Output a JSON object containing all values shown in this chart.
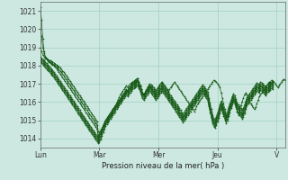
{
  "background_color": "#cce8e0",
  "grid_color": "#99ccbb",
  "line_color": "#1a5c1a",
  "xlabel": "Pression niveau de la mer( hPa )",
  "ylim": [
    1013.5,
    1021.5
  ],
  "yticks": [
    1014,
    1015,
    1016,
    1017,
    1018,
    1019,
    1020,
    1021
  ],
  "day_labels": [
    "Lun",
    "Mar",
    "Mer",
    "Jeu",
    "V"
  ],
  "day_positions": [
    0,
    48,
    96,
    144,
    192
  ],
  "lines": [
    [
      1021.2,
      1020.5,
      1019.5,
      1018.8,
      1018.5,
      1018.4,
      1018.35,
      1018.3,
      1018.28,
      1018.25,
      1018.2,
      1018.15,
      1018.1,
      1018.05,
      1018.0,
      1017.95,
      1017.88,
      1017.8,
      1017.72,
      1017.65,
      1017.55,
      1017.45,
      1017.35,
      1017.25,
      1017.15,
      1017.05,
      1016.95,
      1016.85,
      1016.75,
      1016.65,
      1016.55,
      1016.45,
      1016.35,
      1016.25,
      1016.15,
      1016.05,
      1015.95,
      1015.85,
      1015.75,
      1015.65,
      1015.55,
      1015.45,
      1015.35,
      1015.25,
      1015.15,
      1015.05,
      1014.95,
      1014.4,
      1014.35,
      1014.45,
      1014.55,
      1014.65,
      1014.75,
      1014.85,
      1014.95,
      1015.05,
      1015.15,
      1015.25,
      1015.35,
      1015.45,
      1015.55,
      1015.65,
      1015.75,
      1015.85,
      1015.95,
      1016.05,
      1016.15,
      1016.25,
      1016.35,
      1016.45,
      1016.55,
      1016.65,
      1016.75,
      1016.85,
      1016.95,
      1017.05,
      1017.1,
      1017.15,
      1017.2,
      1017.3,
      1017.1,
      1016.9,
      1016.7,
      1016.5,
      1016.4,
      1016.5,
      1016.65,
      1016.8,
      1016.9,
      1017.0,
      1016.95,
      1016.9,
      1016.8,
      1016.7,
      1016.65,
      1016.75,
      1016.85,
      1016.95,
      1017.05,
      1017.1,
      1017.0,
      1016.9,
      1016.8,
      1016.7,
      1016.6,
      1016.7,
      1016.8,
      1016.9,
      1017.0,
      1017.1,
      1017.0,
      1016.9,
      1016.8,
      1016.7,
      1016.6,
      1016.5,
      1016.4,
      1016.3,
      1016.2,
      1016.1,
      1016.0,
      1015.9,
      1015.8,
      1015.7,
      1015.6,
      1015.5,
      1015.6,
      1015.75,
      1015.9,
      1016.0,
      1016.1,
      1016.2,
      1016.3,
      1016.4,
      1016.5,
      1016.6,
      1016.7,
      1016.8,
      1016.9,
      1017.0,
      1017.1,
      1017.2,
      1017.15,
      1017.1,
      1017.0,
      1016.9,
      1016.8,
      1016.5,
      1016.2,
      1015.9,
      1015.6,
      1015.3,
      1015.2,
      1015.35,
      1015.55,
      1015.75,
      1016.0,
      1016.1,
      1016.0,
      1015.8,
      1015.5,
      1015.3,
      1015.5,
      1015.8,
      1016.0,
      1016.2,
      1016.4,
      1016.5,
      1016.4,
      1016.2,
      1016.0,
      1015.9,
      1015.8,
      1015.7,
      1015.6,
      1015.7,
      1015.9,
      1016.1,
      1016.3,
      1016.4,
      1016.5,
      1016.6,
      1016.7,
      1016.8,
      1016.9,
      1017.0,
      1017.1,
      1017.05,
      1017.0,
      1017.15,
      1017.1,
      1017.0,
      1016.9,
      1016.8,
      1016.9,
      1017.0,
      1017.1,
      1017.2,
      1017.25,
      1017.2
    ],
    [
      1020.0,
      1019.6,
      1019.0,
      1018.7,
      1018.5,
      1018.4,
      1018.3,
      1018.25,
      1018.2,
      1018.15,
      1018.1,
      1018.05,
      1018.0,
      1017.95,
      1017.88,
      1017.8,
      1017.72,
      1017.65,
      1017.55,
      1017.45,
      1017.35,
      1017.25,
      1017.15,
      1017.05,
      1016.95,
      1016.85,
      1016.75,
      1016.65,
      1016.55,
      1016.45,
      1016.35,
      1016.25,
      1016.15,
      1016.05,
      1015.95,
      1015.85,
      1015.75,
      1015.65,
      1015.55,
      1015.45,
      1015.35,
      1015.25,
      1015.15,
      1015.05,
      1014.95,
      1014.85,
      1014.75,
      1014.2,
      1014.25,
      1014.4,
      1014.55,
      1014.7,
      1014.85,
      1015.0,
      1015.1,
      1015.2,
      1015.3,
      1015.4,
      1015.5,
      1015.6,
      1015.7,
      1015.8,
      1015.95,
      1016.1,
      1016.25,
      1016.4,
      1016.5,
      1016.6,
      1016.7,
      1016.8,
      1016.9,
      1016.8,
      1016.9,
      1017.0,
      1017.05,
      1017.1,
      1017.15,
      1017.2,
      1017.25,
      1017.3,
      1017.1,
      1016.9,
      1016.7,
      1016.5,
      1016.4,
      1016.5,
      1016.6,
      1016.7,
      1016.8,
      1016.9,
      1016.85,
      1016.8,
      1016.7,
      1016.6,
      1016.55,
      1016.65,
      1016.75,
      1016.85,
      1016.95,
      1017.05,
      1016.95,
      1016.85,
      1016.75,
      1016.65,
      1016.55,
      1016.45,
      1016.35,
      1016.25,
      1016.15,
      1016.05,
      1015.95,
      1015.85,
      1015.75,
      1015.65,
      1015.55,
      1015.45,
      1015.35,
      1015.45,
      1015.55,
      1015.65,
      1015.75,
      1015.85,
      1015.95,
      1016.05,
      1016.15,
      1016.25,
      1016.35,
      1016.45,
      1016.55,
      1016.65,
      1016.75,
      1016.85,
      1016.95,
      1016.85,
      1016.75,
      1016.65,
      1016.55,
      1016.2,
      1015.9,
      1015.6,
      1015.3,
      1015.1,
      1015.05,
      1015.2,
      1015.4,
      1015.6,
      1015.85,
      1016.05,
      1015.9,
      1015.7,
      1015.5,
      1015.3,
      1015.45,
      1015.7,
      1015.9,
      1016.1,
      1016.3,
      1016.45,
      1016.35,
      1016.15,
      1015.95,
      1015.85,
      1015.75,
      1015.65,
      1015.55,
      1015.65,
      1015.85,
      1016.05,
      1016.25,
      1016.35,
      1016.45,
      1016.55,
      1016.65,
      1016.75,
      1016.85,
      1016.95,
      1017.05,
      1017.0,
      1016.95,
      1017.1,
      1017.05,
      1017.0,
      1016.9,
      1016.8,
      1016.9,
      1017.0,
      1017.05,
      1017.1,
      1017.2,
      1017.15
    ],
    [
      1019.0,
      1018.8,
      1018.6,
      1018.5,
      1018.4,
      1018.35,
      1018.28,
      1018.2,
      1018.15,
      1018.1,
      1018.05,
      1018.0,
      1017.92,
      1017.85,
      1017.75,
      1017.65,
      1017.55,
      1017.45,
      1017.35,
      1017.25,
      1017.15,
      1017.05,
      1016.95,
      1016.85,
      1016.75,
      1016.65,
      1016.55,
      1016.45,
      1016.35,
      1016.25,
      1016.15,
      1016.05,
      1015.95,
      1015.85,
      1015.75,
      1015.65,
      1015.55,
      1015.45,
      1015.35,
      1015.25,
      1015.15,
      1015.05,
      1014.95,
      1014.85,
      1014.75,
      1014.65,
      1014.55,
      1014.1,
      1014.15,
      1014.3,
      1014.5,
      1014.7,
      1014.85,
      1015.0,
      1015.1,
      1015.2,
      1015.3,
      1015.4,
      1015.5,
      1015.6,
      1015.7,
      1015.8,
      1015.9,
      1016.0,
      1016.1,
      1016.2,
      1016.3,
      1016.4,
      1016.5,
      1016.6,
      1016.7,
      1016.6,
      1016.7,
      1016.8,
      1016.9,
      1017.0,
      1017.05,
      1017.1,
      1017.15,
      1017.2,
      1017.05,
      1016.9,
      1016.7,
      1016.5,
      1016.4,
      1016.5,
      1016.6,
      1016.7,
      1016.8,
      1016.9,
      1016.8,
      1016.7,
      1016.6,
      1016.5,
      1016.45,
      1016.55,
      1016.65,
      1016.75,
      1016.85,
      1016.95,
      1016.85,
      1016.75,
      1016.65,
      1016.55,
      1016.45,
      1016.35,
      1016.25,
      1016.15,
      1016.05,
      1015.95,
      1015.85,
      1015.75,
      1015.65,
      1015.55,
      1015.45,
      1015.35,
      1015.25,
      1015.35,
      1015.45,
      1015.55,
      1015.65,
      1015.75,
      1015.85,
      1015.95,
      1016.05,
      1016.15,
      1016.25,
      1016.35,
      1016.45,
      1016.55,
      1016.65,
      1016.75,
      1016.85,
      1016.75,
      1016.65,
      1016.55,
      1016.45,
      1016.1,
      1015.8,
      1015.5,
      1015.2,
      1015.0,
      1014.95,
      1015.1,
      1015.3,
      1015.5,
      1015.75,
      1015.95,
      1015.8,
      1015.6,
      1015.4,
      1015.2,
      1015.35,
      1015.6,
      1015.8,
      1016.0,
      1016.2,
      1016.35,
      1016.25,
      1016.05,
      1015.85,
      1015.75,
      1015.65,
      1015.55,
      1015.45,
      1015.55,
      1015.75,
      1015.95,
      1016.15,
      1016.25,
      1016.35,
      1016.45,
      1016.55,
      1016.65,
      1016.75,
      1016.85,
      1016.95,
      1016.9,
      1016.85,
      1017.0,
      1016.95,
      1016.9,
      1016.8,
      1016.7,
      1016.8,
      1016.9,
      1016.95,
      1017.0,
      1017.1,
      1017.05
    ],
    [
      1018.5,
      1018.4,
      1018.35,
      1018.28,
      1018.2,
      1018.12,
      1018.05,
      1017.98,
      1017.9,
      1017.82,
      1017.75,
      1017.65,
      1017.55,
      1017.45,
      1017.35,
      1017.25,
      1017.15,
      1017.05,
      1016.95,
      1016.85,
      1016.75,
      1016.65,
      1016.55,
      1016.45,
      1016.35,
      1016.25,
      1016.15,
      1016.05,
      1015.95,
      1015.85,
      1015.75,
      1015.65,
      1015.55,
      1015.45,
      1015.35,
      1015.25,
      1015.15,
      1015.05,
      1014.95,
      1014.85,
      1014.75,
      1014.65,
      1014.55,
      1014.45,
      1014.35,
      1014.25,
      1014.15,
      1014.05,
      1014.1,
      1014.25,
      1014.45,
      1014.65,
      1014.8,
      1014.95,
      1015.05,
      1015.15,
      1015.25,
      1015.35,
      1015.45,
      1015.55,
      1015.65,
      1015.75,
      1015.85,
      1015.95,
      1016.05,
      1016.15,
      1016.25,
      1016.35,
      1016.45,
      1016.55,
      1016.65,
      1016.55,
      1016.65,
      1016.75,
      1016.85,
      1016.95,
      1017.0,
      1017.05,
      1017.1,
      1017.15,
      1017.0,
      1016.85,
      1016.65,
      1016.45,
      1016.35,
      1016.45,
      1016.55,
      1016.65,
      1016.75,
      1016.85,
      1016.75,
      1016.65,
      1016.55,
      1016.45,
      1016.35,
      1016.45,
      1016.55,
      1016.65,
      1016.75,
      1016.85,
      1016.75,
      1016.65,
      1016.55,
      1016.45,
      1016.35,
      1016.25,
      1016.15,
      1016.05,
      1015.95,
      1015.85,
      1015.75,
      1015.65,
      1015.55,
      1015.45,
      1015.35,
      1015.25,
      1015.15,
      1015.25,
      1015.35,
      1015.45,
      1015.55,
      1015.65,
      1015.75,
      1015.85,
      1015.95,
      1016.05,
      1016.15,
      1016.25,
      1016.35,
      1016.45,
      1016.55,
      1016.65,
      1016.75,
      1016.65,
      1016.55,
      1016.45,
      1016.35,
      1016.0,
      1015.7,
      1015.4,
      1015.1,
      1014.9,
      1014.85,
      1015.0,
      1015.2,
      1015.4,
      1015.65,
      1015.85,
      1015.7,
      1015.5,
      1015.3,
      1015.1,
      1015.25,
      1015.5,
      1015.7,
      1015.9,
      1016.1,
      1016.25,
      1016.15,
      1015.95,
      1015.75,
      1015.65,
      1015.55,
      1015.45,
      1015.35,
      1015.45,
      1015.65,
      1015.85,
      1016.05,
      1016.15,
      1016.25,
      1016.35,
      1016.45,
      1016.55,
      1016.65,
      1016.75,
      1016.85,
      1016.8,
      1016.75,
      1016.9,
      1016.85,
      1016.8,
      1016.7,
      1016.6,
      1016.7,
      1016.8,
      1016.85,
      1016.9,
      1017.0,
      1016.95
    ],
    [
      1018.4,
      1018.32,
      1018.25,
      1018.18,
      1018.1,
      1018.02,
      1017.95,
      1017.88,
      1017.8,
      1017.72,
      1017.65,
      1017.55,
      1017.45,
      1017.35,
      1017.25,
      1017.15,
      1017.05,
      1016.95,
      1016.85,
      1016.75,
      1016.65,
      1016.55,
      1016.45,
      1016.35,
      1016.25,
      1016.15,
      1016.05,
      1015.95,
      1015.85,
      1015.75,
      1015.65,
      1015.55,
      1015.45,
      1015.35,
      1015.25,
      1015.15,
      1015.05,
      1014.95,
      1014.85,
      1014.75,
      1014.65,
      1014.55,
      1014.45,
      1014.35,
      1014.25,
      1014.15,
      1014.05,
      1013.95,
      1014.0,
      1014.15,
      1014.35,
      1014.55,
      1014.75,
      1014.9,
      1015.0,
      1015.1,
      1015.2,
      1015.3,
      1015.4,
      1015.5,
      1015.6,
      1015.7,
      1015.8,
      1015.9,
      1016.0,
      1016.1,
      1016.2,
      1016.3,
      1016.4,
      1016.5,
      1016.6,
      1016.5,
      1016.6,
      1016.7,
      1016.8,
      1016.9,
      1016.95,
      1017.0,
      1017.05,
      1017.1,
      1016.95,
      1016.8,
      1016.6,
      1016.4,
      1016.3,
      1016.4,
      1016.5,
      1016.6,
      1016.7,
      1016.8,
      1016.7,
      1016.6,
      1016.5,
      1016.4,
      1016.3,
      1016.4,
      1016.5,
      1016.6,
      1016.7,
      1016.8,
      1016.7,
      1016.6,
      1016.5,
      1016.4,
      1016.3,
      1016.2,
      1016.1,
      1016.0,
      1015.9,
      1015.8,
      1015.7,
      1015.6,
      1015.5,
      1015.4,
      1015.3,
      1015.2,
      1015.1,
      1015.2,
      1015.3,
      1015.4,
      1015.5,
      1015.6,
      1015.7,
      1015.8,
      1015.9,
      1016.0,
      1016.1,
      1016.2,
      1016.3,
      1016.4,
      1016.5,
      1016.6,
      1016.7,
      1016.6,
      1016.5,
      1016.4,
      1016.3,
      1015.95,
      1015.65,
      1015.35,
      1015.05,
      1014.85,
      1014.8,
      1014.95,
      1015.15,
      1015.35,
      1015.6,
      1015.8,
      1015.65,
      1015.45,
      1015.25,
      1015.05,
      1015.2,
      1015.45,
      1015.65,
      1015.85,
      1016.05,
      1016.2,
      1016.1,
      1015.9,
      1015.7,
      1015.6,
      1015.5,
      1015.4,
      1015.3,
      1015.4,
      1015.6,
      1015.8,
      1016.0,
      1016.1,
      1016.2,
      1016.3,
      1016.4,
      1016.5,
      1016.6,
      1016.7,
      1016.8,
      1016.75,
      1016.7,
      1016.85,
      1016.8,
      1016.75,
      1016.65,
      1016.55,
      1016.65,
      1016.75,
      1016.8,
      1016.85,
      1016.95,
      1016.9
    ],
    [
      1018.3,
      1018.22,
      1018.15,
      1018.08,
      1018.0,
      1017.92,
      1017.85,
      1017.78,
      1017.7,
      1017.62,
      1017.55,
      1017.45,
      1017.35,
      1017.25,
      1017.15,
      1017.05,
      1016.95,
      1016.85,
      1016.75,
      1016.65,
      1016.55,
      1016.45,
      1016.35,
      1016.25,
      1016.15,
      1016.05,
      1015.95,
      1015.85,
      1015.75,
      1015.65,
      1015.55,
      1015.45,
      1015.35,
      1015.25,
      1015.15,
      1015.05,
      1014.95,
      1014.85,
      1014.75,
      1014.65,
      1014.55,
      1014.45,
      1014.35,
      1014.25,
      1014.15,
      1014.05,
      1013.95,
      1013.85,
      1013.9,
      1014.05,
      1014.25,
      1014.45,
      1014.65,
      1014.8,
      1014.9,
      1015.0,
      1015.1,
      1015.2,
      1015.3,
      1015.4,
      1015.5,
      1015.6,
      1015.7,
      1015.8,
      1015.9,
      1016.0,
      1016.1,
      1016.2,
      1016.3,
      1016.4,
      1016.5,
      1016.4,
      1016.5,
      1016.6,
      1016.7,
      1016.8,
      1016.85,
      1016.9,
      1016.95,
      1017.0,
      1016.85,
      1016.7,
      1016.5,
      1016.3,
      1016.2,
      1016.3,
      1016.4,
      1016.5,
      1016.6,
      1016.7,
      1016.6,
      1016.5,
      1016.4,
      1016.3,
      1016.2,
      1016.3,
      1016.4,
      1016.5,
      1016.6,
      1016.7,
      1016.6,
      1016.5,
      1016.4,
      1016.3,
      1016.2,
      1016.1,
      1016.0,
      1015.9,
      1015.8,
      1015.7,
      1015.6,
      1015.5,
      1015.4,
      1015.3,
      1015.2,
      1015.1,
      1015.0,
      1015.1,
      1015.2,
      1015.3,
      1015.4,
      1015.5,
      1015.6,
      1015.7,
      1015.8,
      1015.9,
      1016.0,
      1016.1,
      1016.2,
      1016.3,
      1016.4,
      1016.5,
      1016.6,
      1016.5,
      1016.4,
      1016.3,
      1016.2,
      1015.85,
      1015.55,
      1015.25,
      1014.95,
      1014.75,
      1014.7,
      1014.85,
      1015.05,
      1015.25,
      1015.5,
      1015.7,
      1015.55,
      1015.35,
      1015.15,
      1014.95,
      1015.1,
      1015.35,
      1015.55,
      1015.75,
      1015.95,
      1016.1,
      1016.0,
      1015.8,
      1015.6,
      1015.5,
      1015.4,
      1015.3,
      1015.2,
      1015.3,
      1015.5,
      1015.7,
      1015.9,
      1016.0,
      1016.1,
      1016.2,
      1016.3,
      1016.4,
      1016.5,
      1016.6,
      1016.7,
      1016.65,
      1016.6,
      1016.75,
      1016.7,
      1016.65,
      1016.55,
      1016.45,
      1016.55,
      1016.65,
      1016.7,
      1016.75,
      1016.85,
      1016.8
    ],
    [
      1018.2,
      1018.12,
      1018.05,
      1017.98,
      1017.9,
      1017.82,
      1017.75,
      1017.68,
      1017.6,
      1017.52,
      1017.45,
      1017.35,
      1017.25,
      1017.15,
      1017.05,
      1016.95,
      1016.85,
      1016.75,
      1016.65,
      1016.55,
      1016.45,
      1016.35,
      1016.25,
      1016.15,
      1016.05,
      1015.95,
      1015.85,
      1015.75,
      1015.65,
      1015.55,
      1015.45,
      1015.35,
      1015.25,
      1015.15,
      1015.05,
      1014.95,
      1014.85,
      1014.75,
      1014.65,
      1014.55,
      1014.45,
      1014.35,
      1014.25,
      1014.15,
      1014.05,
      1013.95,
      1013.85,
      1013.75,
      1013.8,
      1013.95,
      1014.15,
      1014.35,
      1014.55,
      1014.7,
      1014.8,
      1014.9,
      1015.0,
      1015.1,
      1015.2,
      1015.3,
      1015.4,
      1015.5,
      1015.6,
      1015.7,
      1015.8,
      1015.9,
      1016.0,
      1016.1,
      1016.2,
      1016.3,
      1016.4,
      1016.3,
      1016.4,
      1016.5,
      1016.6,
      1016.7,
      1016.75,
      1016.8,
      1016.85,
      1016.9,
      1016.75,
      1016.6,
      1016.4,
      1016.2,
      1016.1,
      1016.2,
      1016.3,
      1016.4,
      1016.5,
      1016.6,
      1016.5,
      1016.4,
      1016.3,
      1016.2,
      1016.1,
      1016.2,
      1016.3,
      1016.4,
      1016.5,
      1016.6,
      1016.5,
      1016.4,
      1016.3,
      1016.2,
      1016.1,
      1016.0,
      1015.9,
      1015.8,
      1015.7,
      1015.6,
      1015.5,
      1015.4,
      1015.3,
      1015.2,
      1015.1,
      1015.0,
      1014.9,
      1015.0,
      1015.1,
      1015.2,
      1015.3,
      1015.4,
      1015.5,
      1015.6,
      1015.7,
      1015.8,
      1015.9,
      1016.0,
      1016.1,
      1016.2,
      1016.3,
      1016.4,
      1016.5,
      1016.4,
      1016.3,
      1016.2,
      1016.1,
      1015.75,
      1015.45,
      1015.15,
      1014.85,
      1014.65,
      1014.6,
      1014.75,
      1014.95,
      1015.15,
      1015.4,
      1015.6,
      1015.45,
      1015.25,
      1015.05,
      1014.85,
      1015.0,
      1015.25,
      1015.45,
      1015.65,
      1015.85,
      1016.0,
      1015.9,
      1015.7,
      1015.5,
      1015.4,
      1015.3,
      1015.2,
      1015.1,
      1015.2,
      1015.4,
      1015.6,
      1015.8,
      1015.9,
      1016.0,
      1016.1,
      1016.2,
      1016.3,
      1016.4,
      1016.5,
      1016.6,
      1016.55,
      1016.5,
      1016.65,
      1016.6,
      1016.55,
      1016.45,
      1016.35,
      1016.45,
      1016.55,
      1016.6,
      1016.65,
      1016.75,
      1016.7
    ]
  ]
}
